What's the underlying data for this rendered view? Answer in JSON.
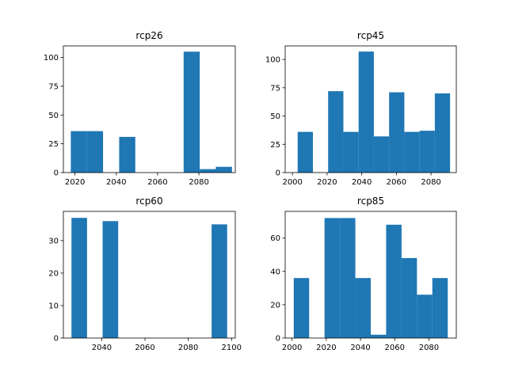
{
  "chart_data": [
    {
      "type": "bar",
      "title": "rcp26",
      "xlabel": "",
      "ylabel": "",
      "xlim": [
        2014.4,
        2097.6
      ],
      "ylim": [
        0,
        110
      ],
      "xticks": [
        2020,
        2040,
        2060,
        2080
      ],
      "yticks": [
        0,
        25,
        50,
        75,
        100
      ],
      "bin_edges": [
        2018.0,
        2025.8,
        2033.6,
        2041.4,
        2049.2,
        2057.0,
        2064.8,
        2072.6,
        2080.4,
        2088.2,
        2096.0
      ],
      "values": [
        36,
        36,
        0,
        31,
        0,
        0,
        0,
        105,
        3,
        5
      ],
      "color": "#1f77b4"
    },
    {
      "type": "bar",
      "title": "rcp45",
      "xlabel": "",
      "ylabel": "",
      "xlim": [
        1995.8,
        2094.6
      ],
      "ylim": [
        0,
        112
      ],
      "xticks": [
        2000,
        2020,
        2040,
        2060,
        2080
      ],
      "yticks": [
        0,
        25,
        50,
        75,
        100
      ],
      "bin_edges": [
        2003.0,
        2011.8,
        2020.6,
        2029.4,
        2038.2,
        2047.0,
        2055.8,
        2064.6,
        2073.4,
        2082.2,
        2091.0
      ],
      "values": [
        36,
        0,
        72,
        36,
        107,
        32,
        71,
        36,
        37,
        70
      ],
      "color": "#1f77b4"
    },
    {
      "type": "bar",
      "title": "rcp60",
      "xlabel": "",
      "ylabel": "",
      "xlim": [
        2022.25,
        2101.75
      ],
      "ylim": [
        0,
        39
      ],
      "xticks": [
        2040,
        2060,
        2080,
        2100
      ],
      "yticks": [
        0,
        10,
        20,
        30
      ],
      "bin_edges": [
        2026.0,
        2033.2,
        2040.4,
        2047.6,
        2054.8,
        2062.0,
        2069.2,
        2076.4,
        2083.6,
        2090.8,
        2098.0
      ],
      "values": [
        37,
        0,
        36,
        0,
        0,
        0,
        0,
        0,
        0,
        35
      ],
      "color": "#1f77b4"
    },
    {
      "type": "bar",
      "title": "rcp85",
      "xlabel": "",
      "ylabel": "",
      "xlim": [
        1996.0,
        2096.0
      ],
      "ylim": [
        0,
        76
      ],
      "xticks": [
        2000,
        2020,
        2040,
        2060,
        2080
      ],
      "yticks": [
        0,
        20,
        40,
        60
      ],
      "bin_edges": [
        2001.0,
        2010.0,
        2019.0,
        2028.0,
        2037.0,
        2046.0,
        2055.0,
        2064.0,
        2073.0,
        2082.0,
        2091.0
      ],
      "values": [
        36,
        0,
        72,
        72,
        36,
        2,
        68,
        48,
        26,
        36
      ],
      "color": "#1f77b4"
    }
  ]
}
